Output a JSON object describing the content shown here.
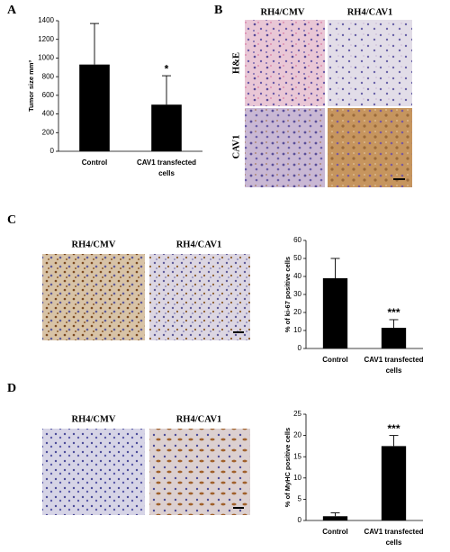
{
  "panel_labels": [
    "A",
    "B",
    "C",
    "D"
  ],
  "panel_b": {
    "columns": [
      "RH4/CMV",
      "RH4/CAV1"
    ],
    "rows": [
      "H&E",
      "CAV1"
    ]
  },
  "panel_c": {
    "columns": [
      "RH4/CMV",
      "RH4/CAV1"
    ]
  },
  "panel_d": {
    "columns": [
      "RH4/CMV",
      "RH4/CAV1"
    ]
  },
  "chart_data": [
    {
      "type": "bar",
      "ylabel": "Tumor size mm³",
      "categories": [
        "Control",
        "CAV1 transfected cells"
      ],
      "values": [
        930,
        500
      ],
      "errors": [
        440,
        310
      ],
      "annotations": [
        null,
        "*"
      ],
      "color": "#000000",
      "ylim": [
        0,
        1400
      ],
      "yticks": [
        0,
        200,
        400,
        600,
        800,
        1000,
        1200,
        1400
      ]
    },
    {
      "type": "bar",
      "ylabel": "% of ki-67 positive cells",
      "categories": [
        "Control",
        "CAV1 transfected cells"
      ],
      "values": [
        39,
        11.5
      ],
      "errors": [
        11,
        4.5
      ],
      "annotations": [
        null,
        "***"
      ],
      "color": "#000000",
      "ylim": [
        0,
        60
      ],
      "yticks": [
        0,
        10,
        20,
        30,
        40,
        50,
        60
      ]
    },
    {
      "type": "bar",
      "ylabel": "% of MyHC positive cells",
      "categories": [
        "Control",
        "CAV1 transfected cells"
      ],
      "values": [
        1,
        17.5
      ],
      "errors": [
        0.8,
        2.5
      ],
      "annotations": [
        null,
        "***"
      ],
      "color": "#000000",
      "ylim": [
        0,
        25
      ],
      "yticks": [
        0,
        5,
        10,
        15,
        20,
        25
      ]
    }
  ]
}
